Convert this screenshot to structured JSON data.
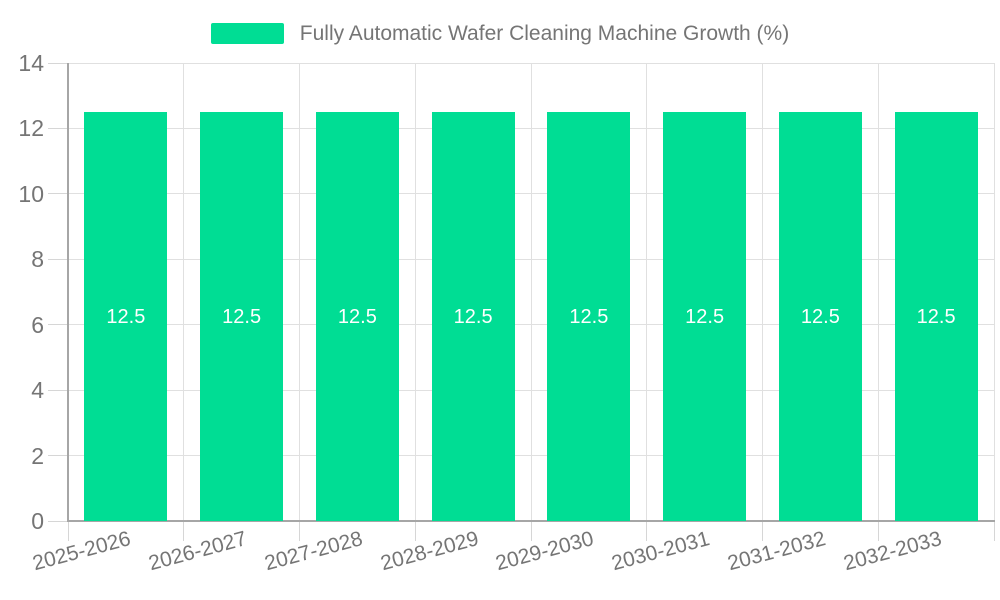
{
  "legend": {
    "label": "Fully Automatic Wafer Cleaning Machine Growth (%)"
  },
  "colors": {
    "bar": "#00dd94",
    "axis_line": "#a6a6a6",
    "gridline": "#e0e0e0",
    "tick_label": "#757575",
    "value_label": "#ffffff",
    "background": "#ffffff"
  },
  "chart_data": {
    "type": "bar",
    "title": "",
    "xlabel": "",
    "ylabel": "",
    "categories": [
      "2025-2026",
      "2026-2027",
      "2027-2028",
      "2028-2029",
      "2029-2030",
      "2030-2031",
      "2031-2032",
      "2032-2033"
    ],
    "series": [
      {
        "name": "Fully Automatic Wafer Cleaning Machine Growth (%)",
        "values": [
          12.5,
          12.5,
          12.5,
          12.5,
          12.5,
          12.5,
          12.5,
          12.5
        ]
      }
    ],
    "bar_value_labels": [
      "12.5",
      "12.5",
      "12.5",
      "12.5",
      "12.5",
      "12.5",
      "12.5",
      "12.5"
    ],
    "ylim": [
      0,
      14
    ],
    "ytick_step": 2,
    "ytick_labels": [
      "0",
      "2",
      "4",
      "6",
      "8",
      "10",
      "12",
      "14"
    ],
    "grid": true,
    "legend_position": "top-center",
    "value_labels_inside_bars": true
  }
}
